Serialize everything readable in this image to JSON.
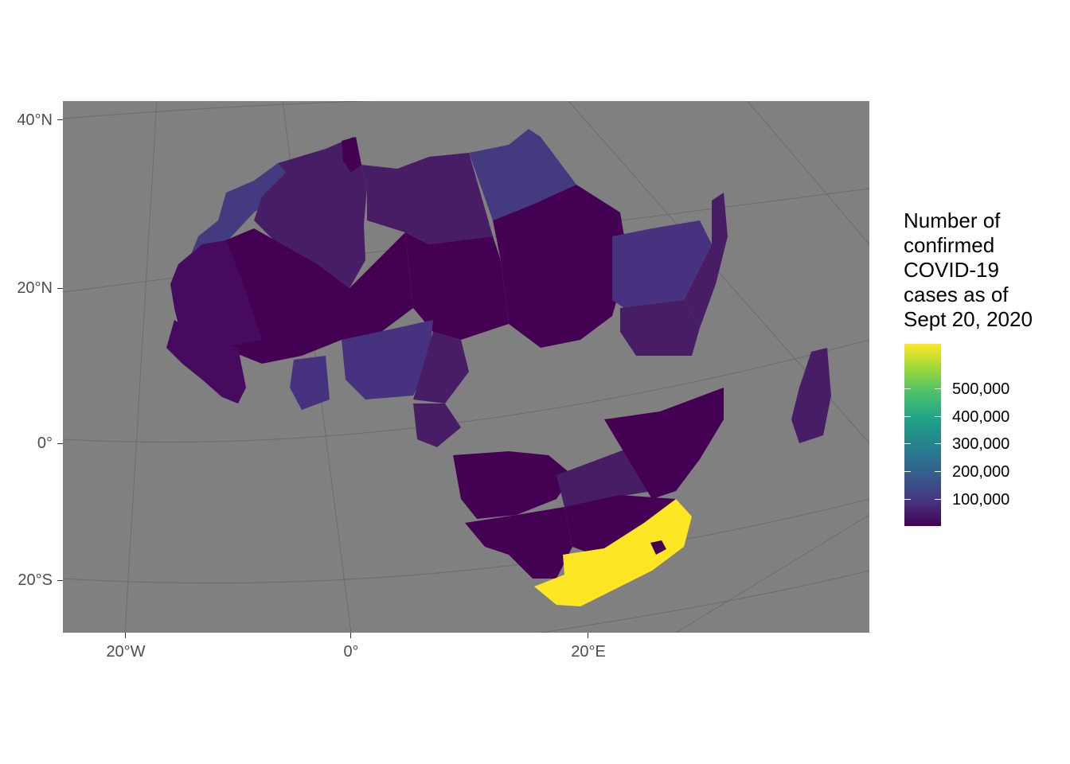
{
  "map": {
    "legend": {
      "title_lines": [
        "Number of",
        "confirmed",
        "COVID-19",
        "cases as of",
        "Sept 20, 2020"
      ],
      "labels": [
        "500,000",
        "400,000",
        "300,000",
        "200,000",
        "100,000"
      ],
      "colors": [
        "#440154",
        "#46327e",
        "#365c8d",
        "#277f8e",
        "#1fa187",
        "#4ac16d",
        "#a0da39",
        "#fde725"
      ]
    },
    "axes": {
      "lat_labels": [
        "40°N",
        "20°N",
        "0°",
        "20°S"
      ],
      "lon_labels": [
        "20°W",
        "0°",
        "20°E"
      ]
    },
    "colors": {
      "panel": "#808080",
      "highest": "#fde725",
      "lowest": "#440154",
      "mid_low": "#471e66",
      "blue_low": "#433a80"
    }
  }
}
